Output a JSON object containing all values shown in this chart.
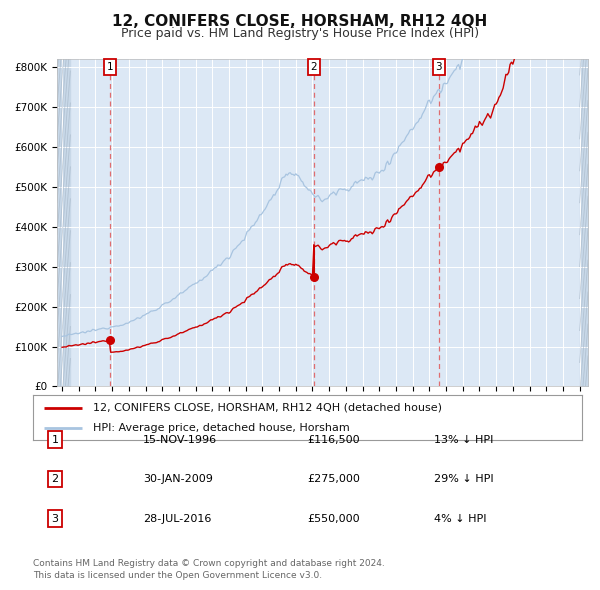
{
  "title": "12, CONIFERS CLOSE, HORSHAM, RH12 4QH",
  "subtitle": "Price paid vs. HM Land Registry's House Price Index (HPI)",
  "title_fontsize": 11,
  "subtitle_fontsize": 9,
  "hpi_color": "#a8c4e0",
  "price_color": "#cc0000",
  "bg_color": "#dce8f5",
  "hatch_color": "#c0d0e0",
  "ylim": [
    0,
    820000
  ],
  "yticks": [
    0,
    100000,
    200000,
    300000,
    400000,
    500000,
    600000,
    700000,
    800000
  ],
  "ytick_labels": [
    "£0",
    "£100K",
    "£200K",
    "£300K",
    "£400K",
    "£500K",
    "£600K",
    "£700K",
    "£800K"
  ],
  "xlim_start": 1993.7,
  "xlim_end": 2025.5,
  "sale_dates": [
    1996.876,
    2009.081,
    2016.573
  ],
  "sale_prices": [
    116500,
    275000,
    550000
  ],
  "legend_line1": "12, CONIFERS CLOSE, HORSHAM, RH12 4QH (detached house)",
  "legend_line2": "HPI: Average price, detached house, Horsham",
  "table_data": [
    [
      "1",
      "15-NOV-1996",
      "£116,500",
      "13% ↓ HPI"
    ],
    [
      "2",
      "30-JAN-2009",
      "£275,000",
      "29% ↓ HPI"
    ],
    [
      "3",
      "28-JUL-2016",
      "£550,000",
      "4% ↓ HPI"
    ]
  ],
  "footnote": "Contains HM Land Registry data © Crown copyright and database right 2024.\nThis data is licensed under the Open Government Licence v3.0.",
  "grid_color": "#ffffff",
  "dashed_line_color": "#e06060"
}
